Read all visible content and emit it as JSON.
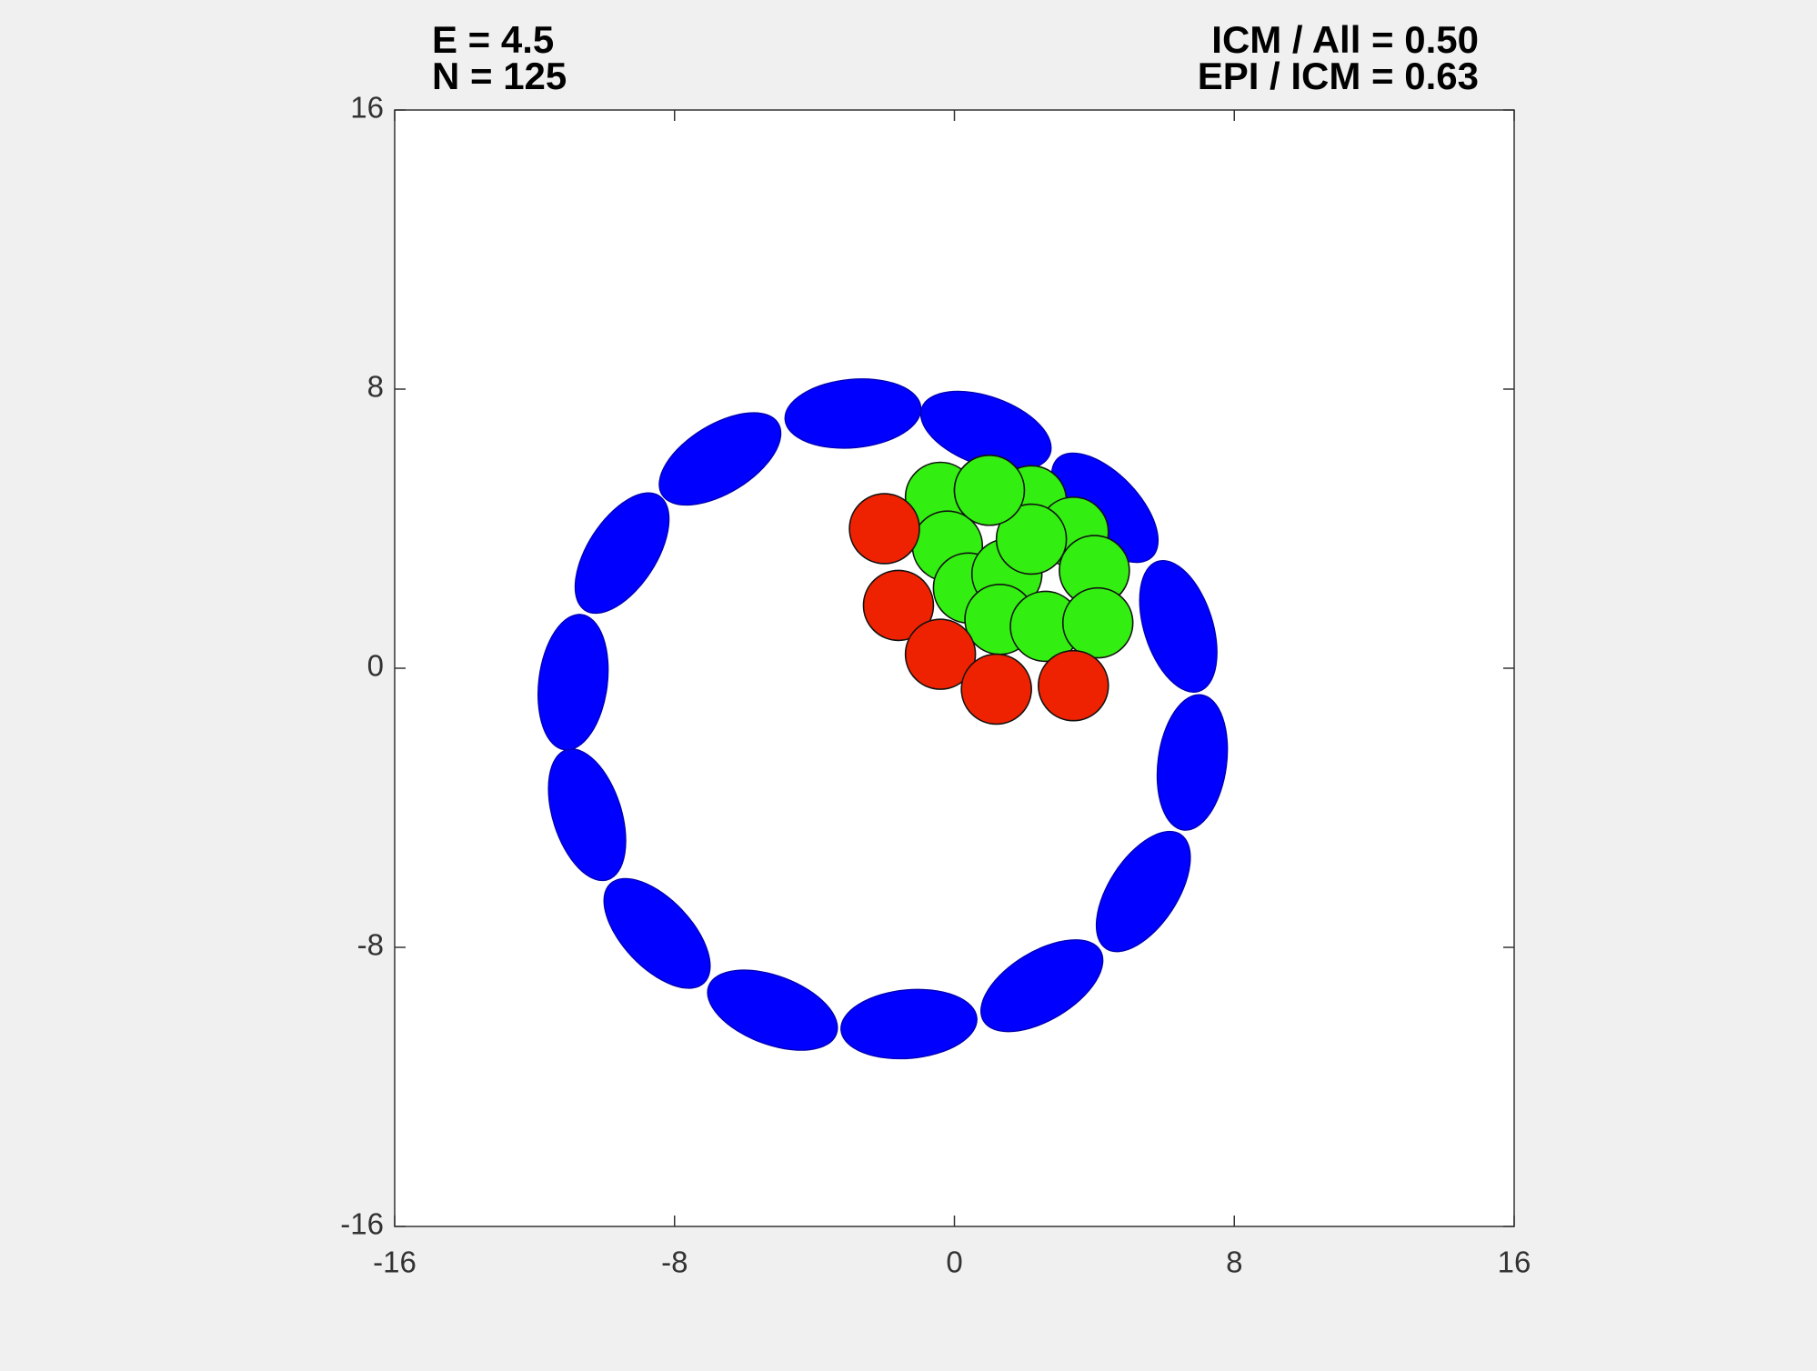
{
  "chart_data": {
    "type": "scatter",
    "annotations": [
      "E = 4.5",
      "N = 125",
      "ICM / All = 0.50",
      "EPI / ICM = 0.63"
    ],
    "xlim": [
      -16,
      16
    ],
    "ylim": [
      -16,
      16
    ],
    "xticks": [
      -16,
      -8,
      0,
      8,
      16
    ],
    "yticks": [
      -16,
      -8,
      0,
      8,
      16
    ],
    "series": [
      {
        "marker": "ellipse",
        "color": "#0000ff",
        "x": [
          -2.9,
          0.9,
          4.3,
          6.4,
          6.8,
          5.4,
          2.5,
          -1.3,
          -5.2,
          -8.5,
          -10.5,
          -10.9,
          -9.5,
          -6.7
        ],
        "y": [
          7.3,
          6.8,
          4.6,
          1.2,
          -2.7,
          -6.4,
          -9.1,
          -10.2,
          -9.8,
          -7.6,
          -4.2,
          -0.4,
          3.3,
          6.0
        ]
      },
      {
        "marker": "circle",
        "color": "#33ee11",
        "x": [
          -0.4,
          1.0,
          2.2,
          3.4,
          -0.2,
          4.0,
          0.4,
          1.5,
          1.3,
          2.6,
          4.1,
          2.2,
          1.0
        ],
        "y": [
          4.9,
          5.1,
          4.8,
          3.9,
          3.5,
          2.8,
          2.3,
          2.7,
          1.4,
          1.2,
          1.3,
          3.7,
          5.1
        ]
      },
      {
        "marker": "circle",
        "color": "#ee2200",
        "x": [
          -2.0,
          -1.6,
          -0.4,
          1.2,
          3.4
        ],
        "y": [
          4.0,
          1.8,
          0.4,
          -0.6,
          -0.5
        ]
      }
    ]
  }
}
